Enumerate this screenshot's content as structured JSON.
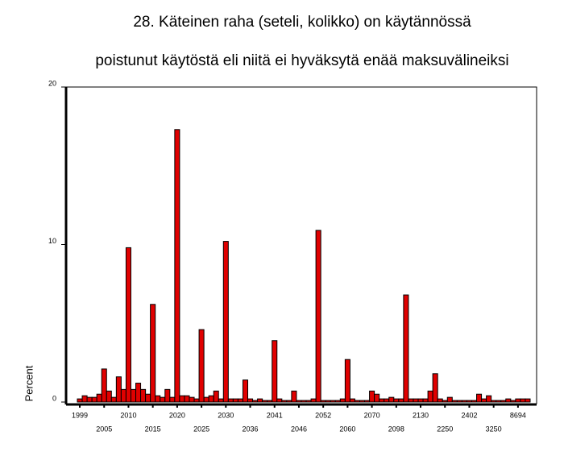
{
  "chart_data": {
    "type": "bar",
    "title": "28. Käteinen raha (seteli, kolikko) on käytännössä",
    "subtitle": "poistunut käytöstä eli niitä ei hyväksytä enää maksuvälineiksi",
    "y_label": "Percent",
    "color": "#e00000",
    "categories": [
      "1999",
      null,
      null,
      null,
      null,
      "2005",
      null,
      null,
      null,
      null,
      "2010",
      null,
      null,
      null,
      null,
      "2015",
      null,
      null,
      null,
      null,
      "2020",
      null,
      null,
      null,
      null,
      "2025",
      null,
      null,
      null,
      null,
      "2030",
      null,
      null,
      null,
      null,
      "2036",
      null,
      null,
      null,
      null,
      "2041",
      null,
      null,
      null,
      null,
      "2046",
      null,
      null,
      null,
      null,
      "2052",
      null,
      null,
      null,
      null,
      "2060",
      null,
      null,
      null,
      null,
      "2070",
      null,
      null,
      null,
      null,
      "2098",
      null,
      null,
      null,
      null,
      "2130",
      null,
      null,
      null,
      null,
      "2250",
      null,
      null,
      null,
      null,
      "2402",
      null,
      null,
      null,
      null,
      "3250",
      null,
      null,
      null,
      null,
      "8694",
      null,
      null
    ],
    "values": [
      0.2,
      0.4,
      0.3,
      0.3,
      0.5,
      2.1,
      0.7,
      0.3,
      1.6,
      0.8,
      9.8,
      0.8,
      1.2,
      0.8,
      0.5,
      6.2,
      0.4,
      0.3,
      0.8,
      0.3,
      17.3,
      0.4,
      0.4,
      0.3,
      0.2,
      4.6,
      0.3,
      0.4,
      0.7,
      0.2,
      10.2,
      0.2,
      0.2,
      0.2,
      1.4,
      0.2,
      0.1,
      0.2,
      0.1,
      0.1,
      3.9,
      0.2,
      0.1,
      0.1,
      0.7,
      0.1,
      0.1,
      0.1,
      0.2,
      10.9,
      0.1,
      0.1,
      0.1,
      0.1,
      0.2,
      2.7,
      0.2,
      0.1,
      0.1,
      0.1,
      0.7,
      0.5,
      0.2,
      0.2,
      0.3,
      0.2,
      0.2,
      6.8,
      0.2,
      0.2,
      0.2,
      0.2,
      0.7,
      1.8,
      0.2,
      0.1,
      0.3,
      0.1,
      0.1,
      0.1,
      0.1,
      0.1,
      0.5,
      0.2,
      0.4,
      0.1,
      0.1,
      0.1,
      0.2,
      0.1,
      0.2,
      0.2,
      0.2
    ],
    "ylim": [
      0,
      20
    ],
    "yticks": [
      0,
      10,
      20
    ]
  }
}
